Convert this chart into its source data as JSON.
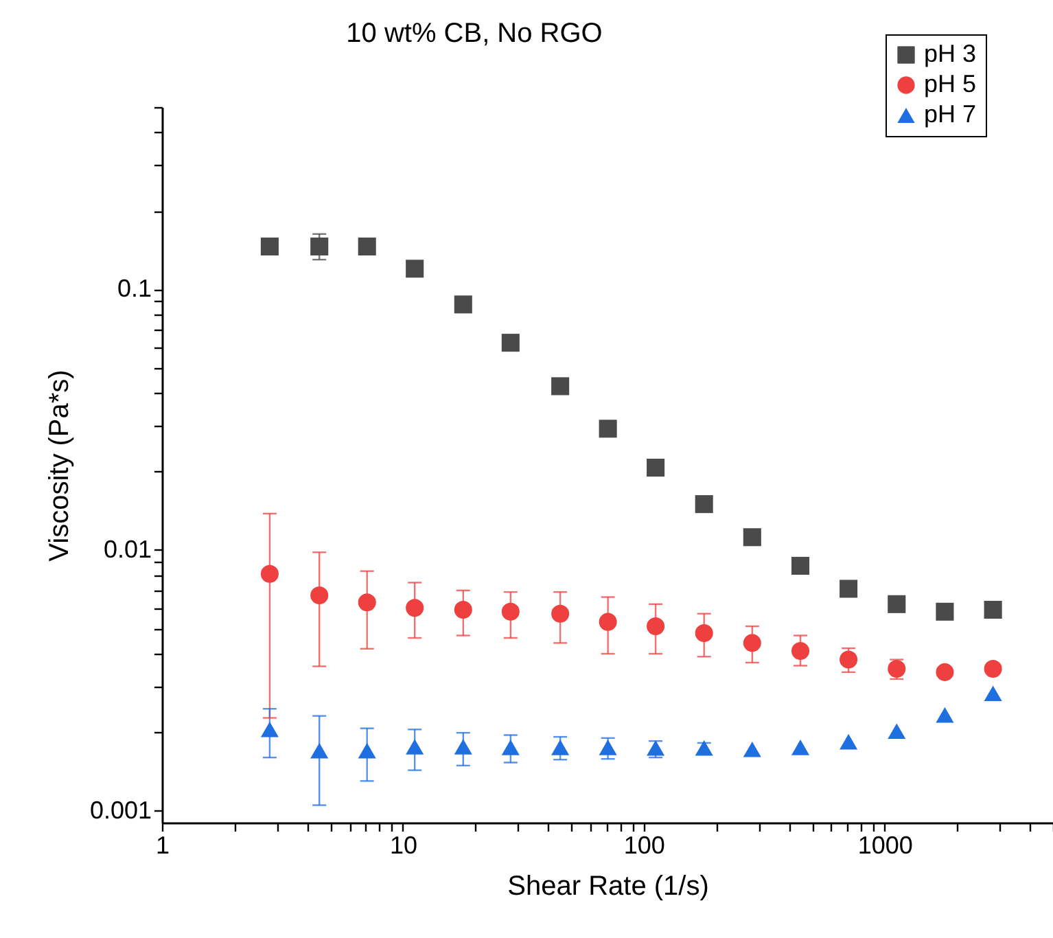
{
  "chart_data": {
    "type": "scatter",
    "title": "10 wt% CB, No RGO",
    "xlabel": "Shear Rate (1/s)",
    "ylabel": "Viscosity (Pa*s)",
    "x": [
      2.8,
      4.5,
      7.1,
      11.2,
      17.8,
      28,
      45,
      71,
      112,
      178,
      282,
      447,
      708,
      1122,
      1778,
      2818
    ],
    "series": [
      {
        "name": "pH 3",
        "color": "#4a4a4a",
        "marker": "square",
        "values": [
          0.146,
          0.146,
          0.146,
          0.12,
          0.0875,
          0.0624,
          0.0425,
          0.0292,
          0.0207,
          0.015,
          0.0112,
          0.0087,
          0.0071,
          0.0062,
          0.0058,
          0.0059
        ],
        "errors": [
          [
            0.138,
            0.155
          ],
          [
            0.13,
            0.163
          ],
          null,
          null,
          null,
          null,
          null,
          null,
          null,
          null,
          null,
          null,
          null,
          null,
          null,
          null
        ]
      },
      {
        "name": "pH 5",
        "color": "#ef4040",
        "marker": "circle",
        "values": [
          0.0081,
          0.0067,
          0.0063,
          0.006,
          0.0059,
          0.0058,
          0.0057,
          0.0053,
          0.0051,
          0.0048,
          0.0044,
          0.0041,
          0.0038,
          0.0035,
          0.0034,
          0.0035
        ],
        "errors": [
          [
            0.00227,
            0.0138
          ],
          [
            0.00358,
            0.0098
          ],
          [
            0.00418,
            0.0083
          ],
          [
            0.0046,
            0.0075
          ],
          [
            0.0047,
            0.007
          ],
          [
            0.0046,
            0.0069
          ],
          [
            0.0044,
            0.0069
          ],
          [
            0.004,
            0.0066
          ],
          [
            0.004,
            0.0062
          ],
          [
            0.0039,
            0.0057
          ],
          [
            0.0037,
            0.0051
          ],
          [
            0.0036,
            0.0047
          ],
          [
            0.0034,
            0.0042
          ],
          [
            0.0032,
            0.0038
          ],
          null,
          null
        ]
      },
      {
        "name": "pH 7",
        "color": "#1f6fe0",
        "marker": "triangle",
        "values": [
          0.00205,
          0.0017,
          0.0017,
          0.00176,
          0.00176,
          0.00175,
          0.00175,
          0.00175,
          0.00174,
          0.00174,
          0.00172,
          0.00175,
          0.00184,
          0.00202,
          0.00233,
          0.00282
        ],
        "errors": [
          [
            0.0016,
            0.00246
          ],
          [
            0.00105,
            0.00231
          ],
          [
            0.0013,
            0.00207
          ],
          [
            0.00143,
            0.00205
          ],
          [
            0.00149,
            0.00199
          ],
          [
            0.00153,
            0.00195
          ],
          [
            0.00157,
            0.00192
          ],
          [
            0.00158,
            0.0019
          ],
          [
            0.0016,
            0.00185
          ],
          [
            0.00166,
            0.00182
          ],
          null,
          null,
          null,
          null,
          null,
          null
        ]
      }
    ],
    "log": "xy",
    "xlim": [
      1,
      5000
    ],
    "ylim": [
      0.0009,
      0.5
    ],
    "xticks": [
      1,
      {
        "value": 2,
        "label": null
      },
      {
        "value": 3,
        "label": null
      },
      {
        "value": 4,
        "label": null
      },
      {
        "value": 5,
        "label": null
      },
      {
        "value": 6,
        "label": null
      },
      {
        "value": 7,
        "label": null
      },
      {
        "value": 8,
        "label": null
      },
      {
        "value": 9,
        "label": null
      },
      10,
      {
        "value": 20,
        "label": null
      },
      {
        "value": 30,
        "label": null
      },
      {
        "value": 40,
        "label": null
      },
      {
        "value": 50,
        "label": null
      },
      {
        "value": 60,
        "label": null
      },
      {
        "value": 70,
        "label": null
      },
      {
        "value": 80,
        "label": null
      },
      {
        "value": 90,
        "label": null
      },
      100,
      {
        "value": 200,
        "label": null
      },
      {
        "value": 300,
        "label": null
      },
      {
        "value": 400,
        "label": null
      },
      {
        "value": 500,
        "label": null
      },
      {
        "value": 600,
        "label": null
      },
      {
        "value": 700,
        "label": null
      },
      {
        "value": 800,
        "label": null
      },
      {
        "value": 900,
        "label": null
      },
      1000,
      {
        "value": 2000,
        "label": null
      },
      {
        "value": 3000,
        "label": null
      },
      {
        "value": 4000,
        "label": null
      },
      {
        "value": 5000,
        "label": null
      }
    ],
    "yticks": [
      0.001,
      {
        "value": 0.002,
        "label": null
      },
      {
        "value": 0.003,
        "label": null
      },
      {
        "value": 0.004,
        "label": null
      },
      {
        "value": 0.005,
        "label": null
      },
      {
        "value": 0.006,
        "label": null
      },
      {
        "value": 0.007,
        "label": null
      },
      {
        "value": 0.008,
        "label": null
      },
      {
        "value": 0.009,
        "label": null
      },
      0.01,
      {
        "value": 0.02,
        "label": null
      },
      {
        "value": 0.03,
        "label": null
      },
      {
        "value": 0.04,
        "label": null
      },
      {
        "value": 0.05,
        "label": null
      },
      {
        "value": 0.06,
        "label": null
      },
      {
        "value": 0.07,
        "label": null
      },
      {
        "value": 0.08,
        "label": null
      },
      {
        "value": 0.09,
        "label": null
      },
      0.1,
      {
        "value": 0.2,
        "label": null
      },
      {
        "value": 0.3,
        "label": null
      },
      {
        "value": 0.4,
        "label": null
      },
      {
        "value": 0.5,
        "label": null
      }
    ],
    "grid": false,
    "legend": "top right"
  }
}
